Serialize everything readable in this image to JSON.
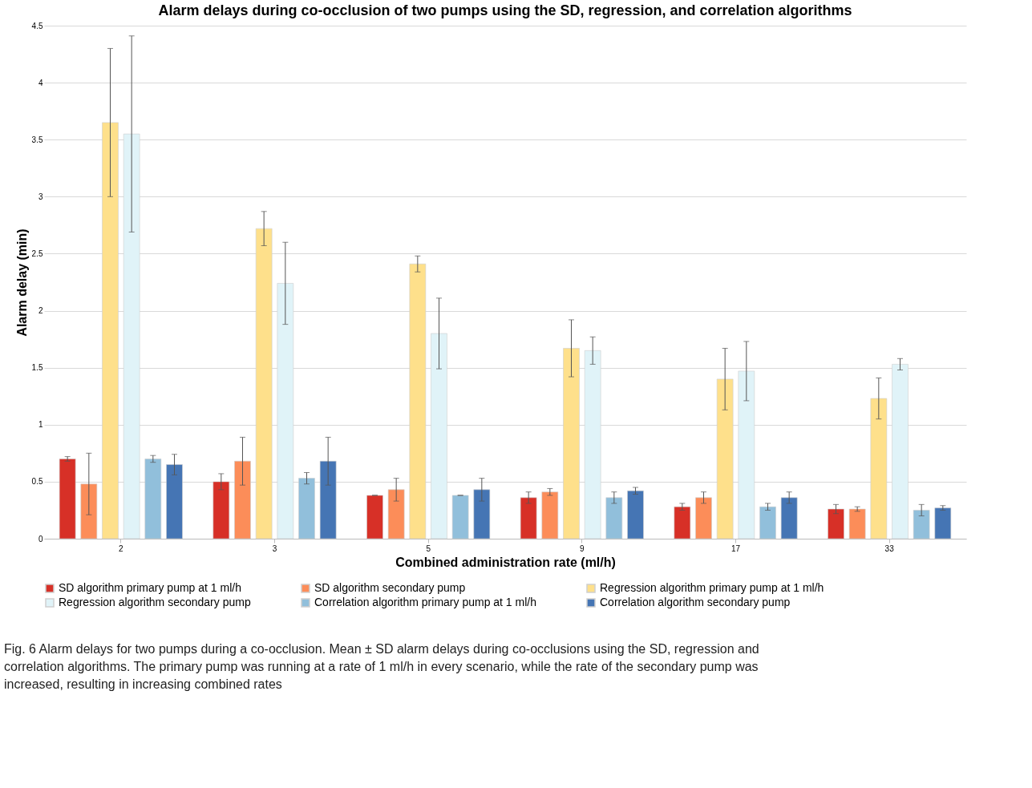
{
  "chart_data": {
    "type": "bar",
    "title": "Alarm delays during co-occlusion of two pumps using the SD, regression, and correlation algorithms",
    "xlabel": "Combined administration rate (ml/h)",
    "ylabel": "Alarm delay (min)",
    "categories": [
      "2",
      "3",
      "5",
      "9",
      "17",
      "33"
    ],
    "series": [
      {
        "name": "SD algorithm primary pump at 1 ml/h",
        "color": "#d73027",
        "values": [
          0.7,
          0.5,
          0.38,
          0.36,
          0.28,
          0.26
        ],
        "errors": [
          0.02,
          0.07,
          0.0,
          0.05,
          0.03,
          0.04
        ]
      },
      {
        "name": "SD algorithm secondary pump",
        "color": "#fc8d59",
        "values": [
          0.48,
          0.68,
          0.43,
          0.41,
          0.36,
          0.26
        ],
        "errors": [
          0.27,
          0.21,
          0.1,
          0.03,
          0.05,
          0.02
        ]
      },
      {
        "name": "Regression algorithm primary pump at 1 ml/h",
        "color": "#fee08b",
        "values": [
          3.65,
          2.72,
          2.41,
          1.67,
          1.4,
          1.23
        ],
        "errors": [
          0.65,
          0.15,
          0.07,
          0.25,
          0.27,
          0.18
        ]
      },
      {
        "name": "Regression algorithm secondary pump",
        "color": "#e0f3f8",
        "values": [
          3.55,
          2.24,
          1.8,
          1.65,
          1.47,
          1.53
        ],
        "errors": [
          0.86,
          0.36,
          0.31,
          0.12,
          0.26,
          0.05
        ]
      },
      {
        "name": "Correlation algorithm primary pump at 1 ml/h",
        "color": "#91bfdb",
        "values": [
          0.7,
          0.53,
          0.38,
          0.36,
          0.28,
          0.25
        ],
        "errors": [
          0.03,
          0.05,
          0.0,
          0.05,
          0.03,
          0.05
        ]
      },
      {
        "name": "Correlation algorithm secondary pump",
        "color": "#4575b4",
        "values": [
          0.65,
          0.68,
          0.43,
          0.42,
          0.36,
          0.27
        ],
        "errors": [
          0.09,
          0.21,
          0.1,
          0.03,
          0.05,
          0.02
        ]
      }
    ],
    "ylim": [
      0,
      4.5
    ],
    "yticks": [
      0,
      0.5,
      1,
      1.5,
      2,
      2.5,
      3,
      3.5,
      4,
      4.5
    ],
    "grid": "y",
    "legend": "bottom",
    "annotations": [
      "Fig. 6  Alarm delays for two pumps during a co-occlusion. Mean ± SD alarm delays during co-occlusions using the SD, regression and correlation algorithms. The primary pump was running at a rate of 1 ml/h in every scenario, while the rate of the secondary pump was increased, resulting in increasing combined rates"
    ]
  }
}
